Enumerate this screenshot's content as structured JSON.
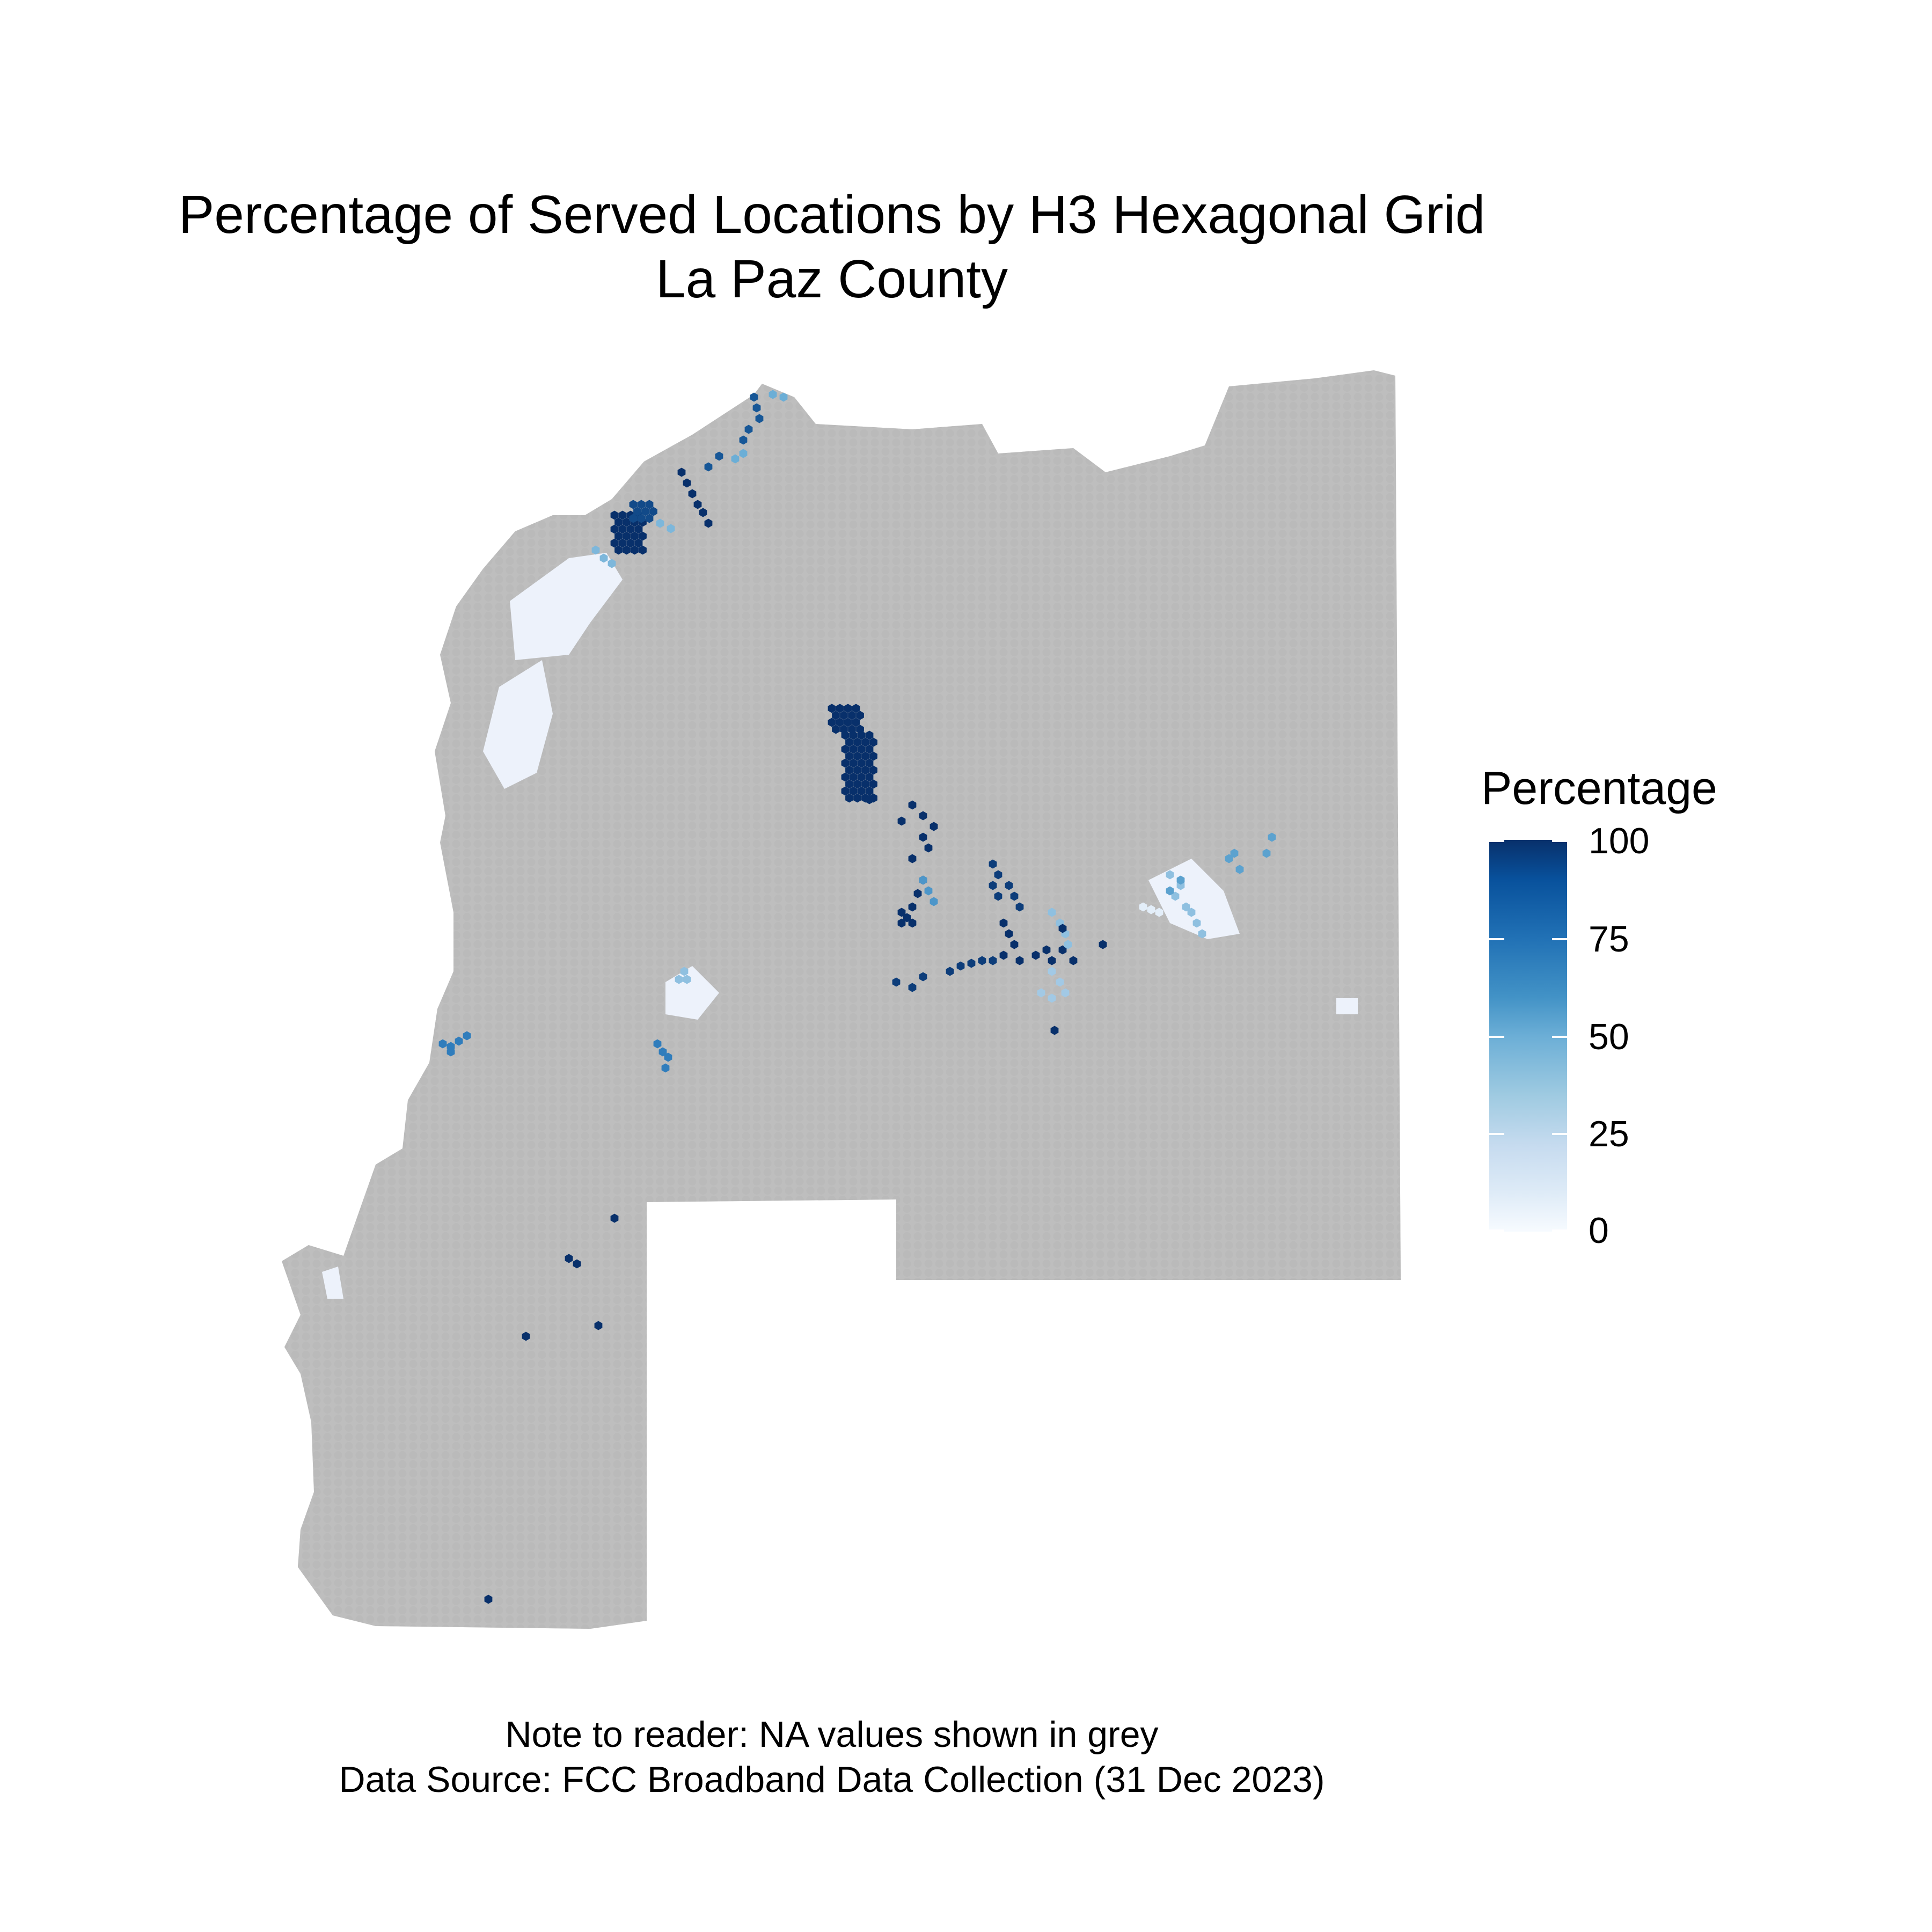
{
  "title": {
    "line1": "Percentage of Served Locations by H3 Hexagonal Grid",
    "line2": "La Paz County"
  },
  "legend": {
    "title": "Percentage",
    "ticks": [
      "100",
      "75",
      "50",
      "25",
      "0"
    ],
    "scale": {
      "min": 0,
      "max": 100,
      "low_color": "#f7fbff",
      "high_color": "#08306b"
    }
  },
  "colors": {
    "na_fill": "#bebebe",
    "background": "#ffffff"
  },
  "caption": {
    "line1": "Note to reader: NA values shown in grey",
    "line2": "Data Source: FCC Broadband Data Collection (31 Dec 2023)"
  }
}
